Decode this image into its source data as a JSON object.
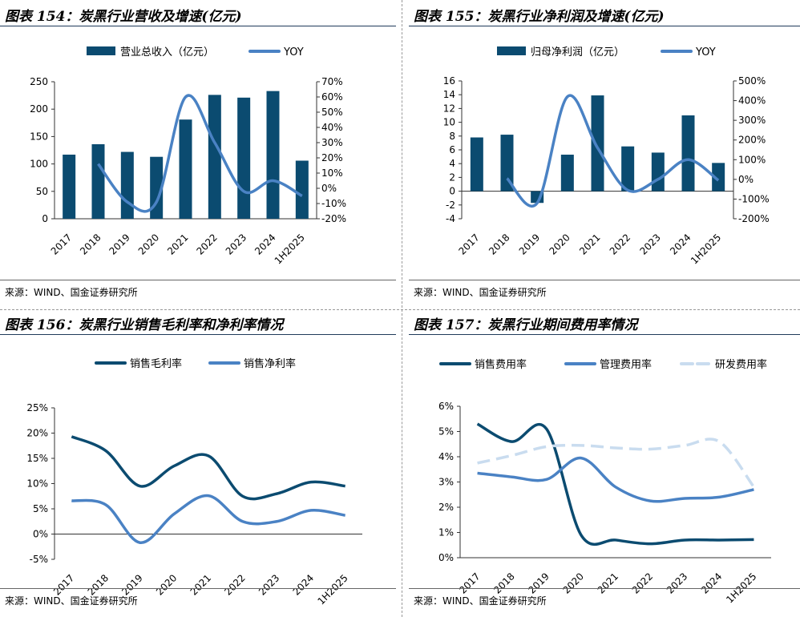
{
  "panels": [
    {
      "title": "图表 154：炭黑行业营收及增速(亿元)",
      "source": "来源：WIND、国金证券研究所",
      "chart_data": {
        "type": "bar+line",
        "categories": [
          "2017",
          "2018",
          "2019",
          "2020",
          "2021",
          "2022",
          "2023",
          "2024",
          "1H2025"
        ],
        "series": [
          {
            "name": "营业总收入（亿元）",
            "type": "bar",
            "axis": "left",
            "values": [
              117,
              136,
              122,
              113,
              181,
              226,
              221,
              233,
              106
            ]
          },
          {
            "name": "YOY",
            "type": "line",
            "axis": "right",
            "values": [
              null,
              16,
              -9,
              -9,
              60,
              30,
              -2,
              5,
              -5
            ]
          }
        ],
        "left_ticks": [
          "0",
          "50",
          "100",
          "150",
          "200",
          "250"
        ],
        "right_ticks": [
          "-20%",
          "-10%",
          "0%",
          "10%",
          "20%",
          "30%",
          "40%",
          "50%",
          "60%",
          "70%"
        ],
        "ylim_left": [
          0,
          250
        ],
        "ylim_right": [
          -20,
          70
        ]
      }
    },
    {
      "title": "图表 155：炭黑行业净利润及增速(亿元)",
      "source": "来源：WIND、国金证券研究所",
      "chart_data": {
        "type": "bar+line",
        "categories": [
          "2017",
          "2018",
          "2019",
          "2020",
          "2021",
          "2022",
          "2023",
          "2024",
          "1H2025"
        ],
        "series": [
          {
            "name": "归母净利润（亿元）",
            "type": "bar",
            "axis": "left",
            "values": [
              7.8,
              8.2,
              -1.7,
              5.3,
              13.9,
              6.5,
              5.6,
              11.0,
              4.1
            ]
          },
          {
            "name": "YOY",
            "type": "line",
            "axis": "right",
            "values": [
              null,
              5,
              -120,
              420,
              160,
              -55,
              0,
              100,
              -5
            ]
          }
        ],
        "left_ticks": [
          "-4",
          "-2",
          "0",
          "2",
          "4",
          "6",
          "8",
          "10",
          "12",
          "14",
          "16"
        ],
        "right_ticks": [
          "-200%",
          "-100%",
          "0%",
          "100%",
          "200%",
          "300%",
          "400%",
          "500%"
        ],
        "ylim_left": [
          -4,
          16
        ],
        "ylim_right": [
          -200,
          500
        ]
      }
    },
    {
      "title": "图表 156：炭黑行业销售毛利率和净利率情况",
      "source": "来源：WIND、国金证券研究所",
      "chart_data": {
        "type": "line",
        "categories": [
          "2017",
          "2018",
          "2019",
          "2020",
          "2021",
          "2022",
          "2023",
          "2024",
          "1H2025"
        ],
        "series": [
          {
            "name": "销售毛利率",
            "values": [
              19.3,
              16.5,
              9.5,
              13.5,
              15.5,
              7.5,
              8.0,
              10.3,
              9.5
            ]
          },
          {
            "name": "销售净利率",
            "values": [
              6.6,
              5.8,
              -1.7,
              4.0,
              7.6,
              2.5,
              2.5,
              4.7,
              3.7
            ]
          }
        ],
        "y_ticks": [
          "-5%",
          "0%",
          "5%",
          "10%",
          "15%",
          "20%",
          "25%"
        ],
        "ylim": [
          -5,
          25
        ]
      }
    },
    {
      "title": "图表 157：炭黑行业期间费用率情况",
      "source": "来源：WIND、国金证券研究所",
      "chart_data": {
        "type": "line",
        "categories": [
          "2017",
          "2018",
          "2019",
          "2020",
          "2021",
          "2022",
          "2023",
          "2024",
          "1H2025"
        ],
        "series": [
          {
            "name": "销售费用率",
            "style": "solid-dark",
            "values": [
              5.3,
              4.6,
              5.1,
              0.9,
              0.7,
              0.55,
              0.7,
              0.7,
              0.72
            ]
          },
          {
            "name": "管理费用率",
            "style": "solid-mid",
            "values": [
              3.35,
              3.2,
              3.1,
              3.95,
              2.8,
              2.25,
              2.35,
              2.4,
              2.7
            ]
          },
          {
            "name": "研发费用率",
            "style": "dashed-light",
            "values": [
              3.75,
              4.05,
              4.4,
              4.45,
              4.35,
              4.3,
              4.45,
              4.6,
              2.8
            ]
          }
        ],
        "y_ticks": [
          "0%",
          "1%",
          "2%",
          "3%",
          "4%",
          "5%",
          "6%"
        ],
        "ylim": [
          0,
          6
        ]
      }
    }
  ],
  "colors": {
    "dark": "#0b4b70",
    "mid": "#4a82c4",
    "light": "#c9dcef",
    "axis": "#333333"
  }
}
